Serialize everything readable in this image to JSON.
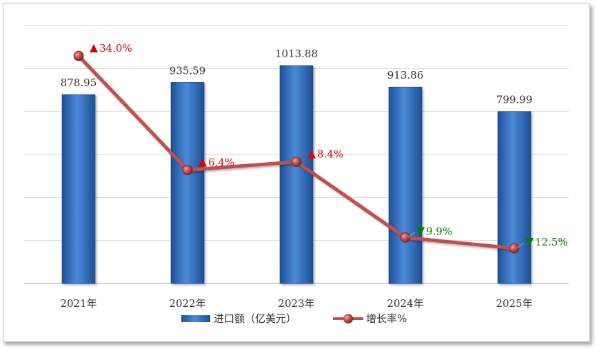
{
  "chart_data": {
    "type": "bar",
    "categories": [
      "2021年",
      "2022年",
      "2023年",
      "2024年",
      "2025年"
    ],
    "series": [
      {
        "name": "进口额（亿美元）",
        "type": "bar",
        "values": [
          878.95,
          935.59,
          1013.88,
          913.86,
          799.99
        ],
        "value_labels": [
          "878.95",
          "935.59",
          "1013.88",
          "913.86",
          "799.99"
        ],
        "color": "#3a78c8"
      },
      {
        "name": "增长率%",
        "type": "line",
        "values": [
          34.0,
          6.4,
          8.4,
          -9.9,
          -12.5
        ],
        "value_labels": [
          "34.0%",
          "6.4%",
          "8.4%",
          "9.9%",
          "12.5%"
        ],
        "color": "#c0504d"
      }
    ],
    "up_arrow_color": "#e00000",
    "down_arrow_color": "#008000",
    "grid": true,
    "legend_position": "bottom",
    "ylim": [
      0,
      1200
    ]
  }
}
